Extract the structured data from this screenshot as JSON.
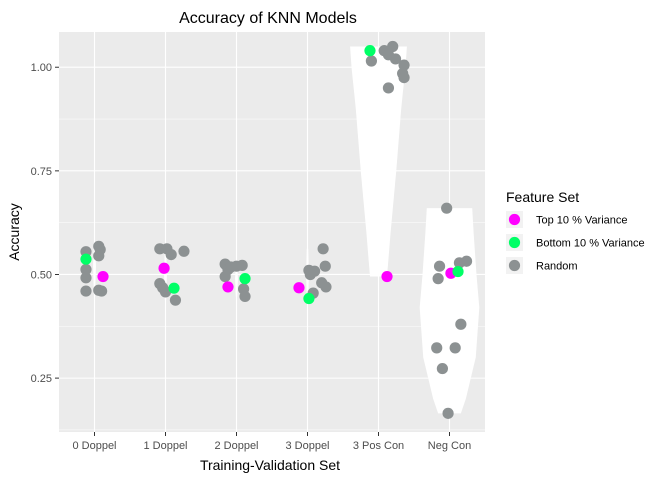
{
  "chart_data": {
    "type": "scatter",
    "subtype": "jittered points over violin plots",
    "title": "Accuracy of KNN Models",
    "xlabel": "Training-Validation Set",
    "ylabel": "Accuracy",
    "categories": [
      "0 Doppel",
      "1 Doppel",
      "2 Doppel",
      "3 Doppel",
      "3 Pos Con",
      "Neg Con"
    ],
    "ylim": [
      0.12,
      1.085
    ],
    "yticks": [
      0.25,
      0.5,
      0.75,
      1.0
    ],
    "ytick_labels": [
      "0.25",
      "0.50",
      "0.75",
      "1.00"
    ],
    "grid": true,
    "legend": {
      "title": "Feature Set",
      "placement": "right"
    },
    "series": [
      {
        "name": "Top 10 % Variance",
        "color": "#FF00FF",
        "points": [
          {
            "category": "0 Doppel",
            "jitter": 0.12,
            "y": 0.495
          },
          {
            "category": "1 Doppel",
            "jitter": -0.02,
            "y": 0.515
          },
          {
            "category": "2 Doppel",
            "jitter": -0.12,
            "y": 0.47
          },
          {
            "category": "3 Doppel",
            "jitter": -0.12,
            "y": 0.468
          },
          {
            "category": "3 Pos Con",
            "jitter": 0.12,
            "y": 0.495
          },
          {
            "category": "Neg Con",
            "jitter": 0.02,
            "y": 0.503
          }
        ]
      },
      {
        "name": "Bottom 10 % Variance",
        "color": "#00FF66",
        "points": [
          {
            "category": "0 Doppel",
            "jitter": -0.12,
            "y": 0.537
          },
          {
            "category": "1 Doppel",
            "jitter": 0.12,
            "y": 0.467
          },
          {
            "category": "2 Doppel",
            "jitter": 0.12,
            "y": 0.49
          },
          {
            "category": "3 Doppel",
            "jitter": 0.02,
            "y": 0.442
          },
          {
            "category": "3 Pos Con",
            "jitter": -0.12,
            "y": 1.04
          },
          {
            "category": "Neg Con",
            "jitter": 0.12,
            "y": 0.507
          }
        ]
      },
      {
        "name": "Random",
        "color": "#8C9192",
        "points": [
          {
            "category": "0 Doppel",
            "jitter": -0.12,
            "y": 0.555
          },
          {
            "category": "0 Doppel",
            "jitter": -0.12,
            "y": 0.512
          },
          {
            "category": "0 Doppel",
            "jitter": -0.12,
            "y": 0.492
          },
          {
            "category": "0 Doppel",
            "jitter": -0.12,
            "y": 0.46
          },
          {
            "category": "0 Doppel",
            "jitter": 0.06,
            "y": 0.568
          },
          {
            "category": "0 Doppel",
            "jitter": 0.08,
            "y": 0.56
          },
          {
            "category": "0 Doppel",
            "jitter": 0.06,
            "y": 0.545
          },
          {
            "category": "0 Doppel",
            "jitter": 0.06,
            "y": 0.462
          },
          {
            "category": "0 Doppel",
            "jitter": 0.1,
            "y": 0.46
          },
          {
            "category": "1 Doppel",
            "jitter": -0.08,
            "y": 0.562
          },
          {
            "category": "1 Doppel",
            "jitter": 0.02,
            "y": 0.562
          },
          {
            "category": "1 Doppel",
            "jitter": 0.08,
            "y": 0.548
          },
          {
            "category": "1 Doppel",
            "jitter": 0.26,
            "y": 0.556
          },
          {
            "category": "1 Doppel",
            "jitter": -0.08,
            "y": 0.478
          },
          {
            "category": "1 Doppel",
            "jitter": -0.04,
            "y": 0.468
          },
          {
            "category": "1 Doppel",
            "jitter": 0.0,
            "y": 0.458
          },
          {
            "category": "1 Doppel",
            "jitter": 0.14,
            "y": 0.438
          },
          {
            "category": "2 Doppel",
            "jitter": -0.16,
            "y": 0.525
          },
          {
            "category": "2 Doppel",
            "jitter": -0.12,
            "y": 0.512
          },
          {
            "category": "2 Doppel",
            "jitter": -0.16,
            "y": 0.495
          },
          {
            "category": "2 Doppel",
            "jitter": -0.08,
            "y": 0.518
          },
          {
            "category": "2 Doppel",
            "jitter": 0.0,
            "y": 0.52
          },
          {
            "category": "2 Doppel",
            "jitter": 0.08,
            "y": 0.522
          },
          {
            "category": "2 Doppel",
            "jitter": 0.1,
            "y": 0.465
          },
          {
            "category": "2 Doppel",
            "jitter": 0.12,
            "y": 0.447
          },
          {
            "category": "3 Doppel",
            "jitter": 0.22,
            "y": 0.562
          },
          {
            "category": "3 Doppel",
            "jitter": 0.02,
            "y": 0.51
          },
          {
            "category": "3 Doppel",
            "jitter": 0.1,
            "y": 0.508
          },
          {
            "category": "3 Doppel",
            "jitter": 0.25,
            "y": 0.52
          },
          {
            "category": "3 Doppel",
            "jitter": 0.04,
            "y": 0.5
          },
          {
            "category": "3 Doppel",
            "jitter": 0.2,
            "y": 0.48
          },
          {
            "category": "3 Doppel",
            "jitter": 0.26,
            "y": 0.47
          },
          {
            "category": "3 Doppel",
            "jitter": 0.08,
            "y": 0.455
          },
          {
            "category": "3 Pos Con",
            "jitter": 0.2,
            "y": 1.05
          },
          {
            "category": "3 Pos Con",
            "jitter": 0.08,
            "y": 1.04
          },
          {
            "category": "3 Pos Con",
            "jitter": 0.14,
            "y": 1.03
          },
          {
            "category": "3 Pos Con",
            "jitter": 0.24,
            "y": 1.02
          },
          {
            "category": "3 Pos Con",
            "jitter": -0.1,
            "y": 1.015
          },
          {
            "category": "3 Pos Con",
            "jitter": 0.36,
            "y": 1.005
          },
          {
            "category": "3 Pos Con",
            "jitter": 0.34,
            "y": 0.985
          },
          {
            "category": "3 Pos Con",
            "jitter": 0.36,
            "y": 0.975
          },
          {
            "category": "3 Pos Con",
            "jitter": 0.14,
            "y": 0.95
          },
          {
            "category": "Neg Con",
            "jitter": -0.04,
            "y": 0.66
          },
          {
            "category": "Neg Con",
            "jitter": 0.24,
            "y": 0.532
          },
          {
            "category": "Neg Con",
            "jitter": 0.14,
            "y": 0.528
          },
          {
            "category": "Neg Con",
            "jitter": -0.14,
            "y": 0.52
          },
          {
            "category": "Neg Con",
            "jitter": -0.16,
            "y": 0.49
          },
          {
            "category": "Neg Con",
            "jitter": 0.16,
            "y": 0.38
          },
          {
            "category": "Neg Con",
            "jitter": -0.18,
            "y": 0.323
          },
          {
            "category": "Neg Con",
            "jitter": 0.08,
            "y": 0.323
          },
          {
            "category": "Neg Con",
            "jitter": -0.1,
            "y": 0.273
          },
          {
            "category": "Neg Con",
            "jitter": -0.02,
            "y": 0.165
          }
        ]
      }
    ],
    "violins": [
      {
        "category": "0 Doppel",
        "min": 0.458,
        "max": 0.568,
        "profile": [
          [
            0.458,
            0.01
          ],
          [
            0.52,
            0.02
          ],
          [
            0.568,
            0.01
          ]
        ]
      },
      {
        "category": "1 Doppel",
        "min": 0.438,
        "max": 0.562,
        "profile": [
          [
            0.438,
            0.01
          ],
          [
            0.5,
            0.02
          ],
          [
            0.562,
            0.01
          ]
        ]
      },
      {
        "category": "2 Doppel",
        "min": 0.447,
        "max": 0.525,
        "profile": [
          [
            0.447,
            0.01
          ],
          [
            0.49,
            0.02
          ],
          [
            0.525,
            0.01
          ]
        ]
      },
      {
        "category": "3 Doppel",
        "min": 0.442,
        "max": 0.562,
        "profile": [
          [
            0.442,
            0.01
          ],
          [
            0.5,
            0.02
          ],
          [
            0.562,
            0.01
          ]
        ]
      },
      {
        "category": "3 Pos Con",
        "min": 0.495,
        "max": 1.05,
        "profile": [
          [
            0.495,
            0.12
          ],
          [
            0.6,
            0.17
          ],
          [
            0.75,
            0.25
          ],
          [
            0.9,
            0.32
          ],
          [
            1.0,
            0.38
          ],
          [
            1.05,
            0.4
          ]
        ]
      },
      {
        "category": "Neg Con",
        "min": 0.165,
        "max": 0.66,
        "profile": [
          [
            0.165,
            0.16
          ],
          [
            0.2,
            0.23
          ],
          [
            0.3,
            0.37
          ],
          [
            0.42,
            0.42
          ],
          [
            0.5,
            0.38
          ],
          [
            0.6,
            0.34
          ],
          [
            0.66,
            0.32
          ]
        ]
      }
    ]
  }
}
